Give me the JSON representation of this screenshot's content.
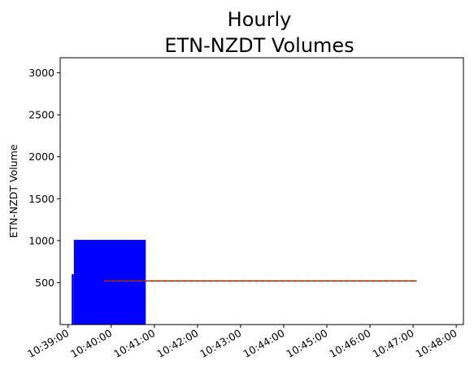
{
  "chart_data": {
    "type": "bar",
    "title_lines": [
      "Hourly",
      "ETN-NZDT Volumes"
    ],
    "xlabel": "",
    "ylabel": "ETN-NZDT Volume",
    "x_ticks": [
      "10:39:00",
      "10:40:00",
      "10:41:00",
      "10:42:00",
      "10:43:00",
      "10:44:00",
      "10:45:00",
      "10:46:00",
      "10:47:00",
      "10:48:00"
    ],
    "xlim": [
      "10:38:49",
      "10:48:10"
    ],
    "y_ticks": [
      500,
      1000,
      1500,
      2000,
      2500,
      3000
    ],
    "ylim": [
      0,
      3180
    ],
    "grid": false,
    "bars": [
      {
        "start": "10:39:05",
        "end": "10:39:08",
        "value": 600
      },
      {
        "start": "10:39:08",
        "end": "10:40:48",
        "value": 1010
      }
    ],
    "lines": [
      {
        "style": "solid",
        "from": "10:39:50",
        "to": "10:47:05",
        "value": 520
      },
      {
        "style": "dashed",
        "from": "10:39:50",
        "to": "10:47:05",
        "value": 520
      }
    ],
    "colors": {
      "bars": "#0000ff",
      "solid_line": "#008000",
      "dashed_line": "#ff0000"
    }
  }
}
